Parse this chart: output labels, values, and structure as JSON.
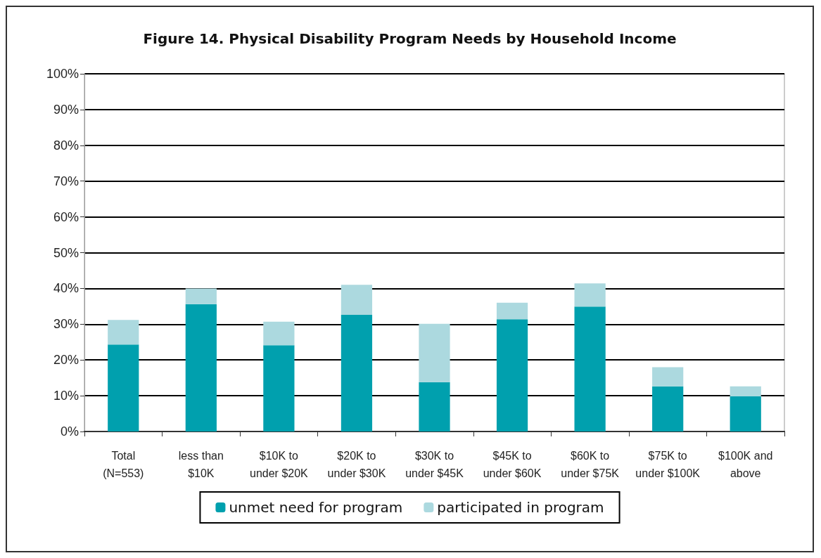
{
  "chart_data": {
    "type": "bar",
    "title": "Figure 14. Physical Disability Program Needs by Household Income",
    "categories": [
      "Total\n(N=553)",
      "less than\n$10K",
      "$10K to\nunder $20K",
      "$20K to\nunder $30K",
      "$30K to\nunder $45K",
      "$45K to\nunder $60K",
      "$60K to\nunder $75K",
      "$75K to\nunder $100K",
      "$100K and\nabove"
    ],
    "stacked": true,
    "series": [
      {
        "name": "unmet need for program",
        "color": "#00a0ae",
        "values": [
          24.3,
          35.6,
          24.1,
          32.6,
          13.8,
          31.4,
          34.9,
          12.6,
          9.8
        ]
      },
      {
        "name": "participated in program",
        "color": "#acd9df",
        "values": [
          6.9,
          4.4,
          6.6,
          8.4,
          16.3,
          4.6,
          6.5,
          5.4,
          2.8
        ]
      }
    ],
    "ylim": [
      0,
      100
    ],
    "yticks": [
      {
        "value": 0,
        "label": "0%"
      },
      {
        "value": 10,
        "label": "10%"
      },
      {
        "value": 20,
        "label": "20%"
      },
      {
        "value": 30,
        "label": "30%"
      },
      {
        "value": 40,
        "label": "40%"
      },
      {
        "value": 50,
        "label": "50%"
      },
      {
        "value": 60,
        "label": "60%"
      },
      {
        "value": 70,
        "label": "70%"
      },
      {
        "value": 80,
        "label": "80%"
      },
      {
        "value": 90,
        "label": "90%"
      },
      {
        "value": 100,
        "label": "100%"
      }
    ],
    "grid": "y",
    "legend": "bottom"
  }
}
